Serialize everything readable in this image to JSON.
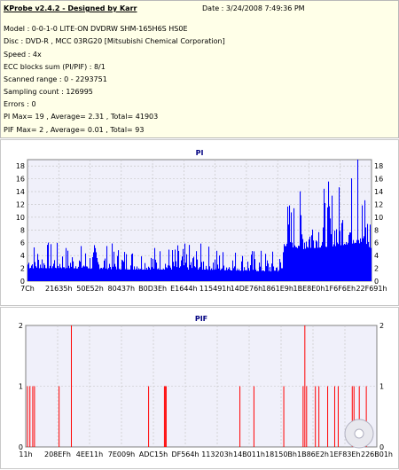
{
  "header": {
    "app_title": "KProbe v2.4.2 - Designed by Karr",
    "date": "Date : 3/24/2008 7:49:36 PM",
    "lines": [
      "Model : 0-0-1-0 LITE-ON DVDRW SHM-165H6S HS0E",
      "Disc : DVD-R , MCC 03RG20  [Mitsubishi Chemical Corporation]",
      "Speed : 4x",
      "ECC blocks sum (PI/PIF) : 8/1",
      "Scanned range : 0 - 2293751",
      "Sampling count : 126995",
      "Errors : 0",
      "PI Max= 19 , Average= 2.31 , Total= 41903",
      "PIF Max= 2 , Average= 0.01 , Total= 93"
    ]
  },
  "colors": {
    "bar": "#0000ff",
    "pif_line": "#ff0000",
    "plot_bg": "#f0f0fa",
    "grid": "#c0c0c0",
    "title": "#000080"
  },
  "chart_data": [
    {
      "type": "area",
      "title": "PI",
      "xlabel": "",
      "ylabel": "",
      "ylim": [
        0,
        19
      ],
      "yticks": [
        0,
        2,
        4,
        6,
        8,
        10,
        12,
        14,
        16,
        18
      ],
      "x_ticks": [
        "7Ch",
        "21635h",
        "50E52h",
        "80437h",
        "B0D3Eh",
        "E1644h",
        "115491h",
        "14DE76h",
        "1861E9h",
        "1BE8E0h",
        "1F6F6Eh",
        "22F691h"
      ],
      "profile": [
        {
          "x": 0.0,
          "base": 2.0,
          "peak": 7
        },
        {
          "x": 0.1,
          "base": 2.0,
          "peak": 6
        },
        {
          "x": 0.3,
          "base": 1.8,
          "peak": 6
        },
        {
          "x": 0.5,
          "base": 1.8,
          "peak": 6
        },
        {
          "x": 0.7,
          "base": 1.5,
          "peak": 5
        },
        {
          "x": 0.74,
          "base": 1.5,
          "peak": 5
        },
        {
          "x": 0.745,
          "base": 5.5,
          "peak": 13
        },
        {
          "x": 0.8,
          "base": 5.0,
          "peak": 15
        },
        {
          "x": 0.9,
          "base": 5.5,
          "peak": 16
        },
        {
          "x": 0.96,
          "base": 6.0,
          "peak": 19
        },
        {
          "x": 1.0,
          "base": 5.0,
          "peak": 12
        }
      ]
    },
    {
      "type": "bar",
      "title": "PIF",
      "xlabel": "",
      "ylabel": "",
      "ylim": [
        0,
        2
      ],
      "yticks": [
        0,
        1,
        2
      ],
      "x_ticks": [
        "11h",
        "208EFh",
        "4EE11h",
        "7E009h",
        "ADC15h",
        "DF564h",
        "113203h",
        "14B011h",
        "18150Bh",
        "1B86E2h",
        "1EF83Eh",
        "226B01h"
      ],
      "spikes": [
        {
          "x": 0.005,
          "v": 1
        },
        {
          "x": 0.012,
          "v": 1
        },
        {
          "x": 0.02,
          "v": 1
        },
        {
          "x": 0.025,
          "v": 1
        },
        {
          "x": 0.095,
          "v": 1
        },
        {
          "x": 0.13,
          "v": 2
        },
        {
          "x": 0.35,
          "v": 1
        },
        {
          "x": 0.395,
          "v": 1
        },
        {
          "x": 0.398,
          "v": 1
        },
        {
          "x": 0.4,
          "v": 1
        },
        {
          "x": 0.61,
          "v": 1
        },
        {
          "x": 0.65,
          "v": 1
        },
        {
          "x": 0.735,
          "v": 1
        },
        {
          "x": 0.79,
          "v": 1
        },
        {
          "x": 0.795,
          "v": 2
        },
        {
          "x": 0.8,
          "v": 1
        },
        {
          "x": 0.825,
          "v": 1
        },
        {
          "x": 0.835,
          "v": 1
        },
        {
          "x": 0.86,
          "v": 1
        },
        {
          "x": 0.88,
          "v": 1
        },
        {
          "x": 0.89,
          "v": 1
        },
        {
          "x": 0.93,
          "v": 1
        },
        {
          "x": 0.935,
          "v": 1
        },
        {
          "x": 0.95,
          "v": 1
        },
        {
          "x": 0.97,
          "v": 1
        }
      ]
    }
  ]
}
